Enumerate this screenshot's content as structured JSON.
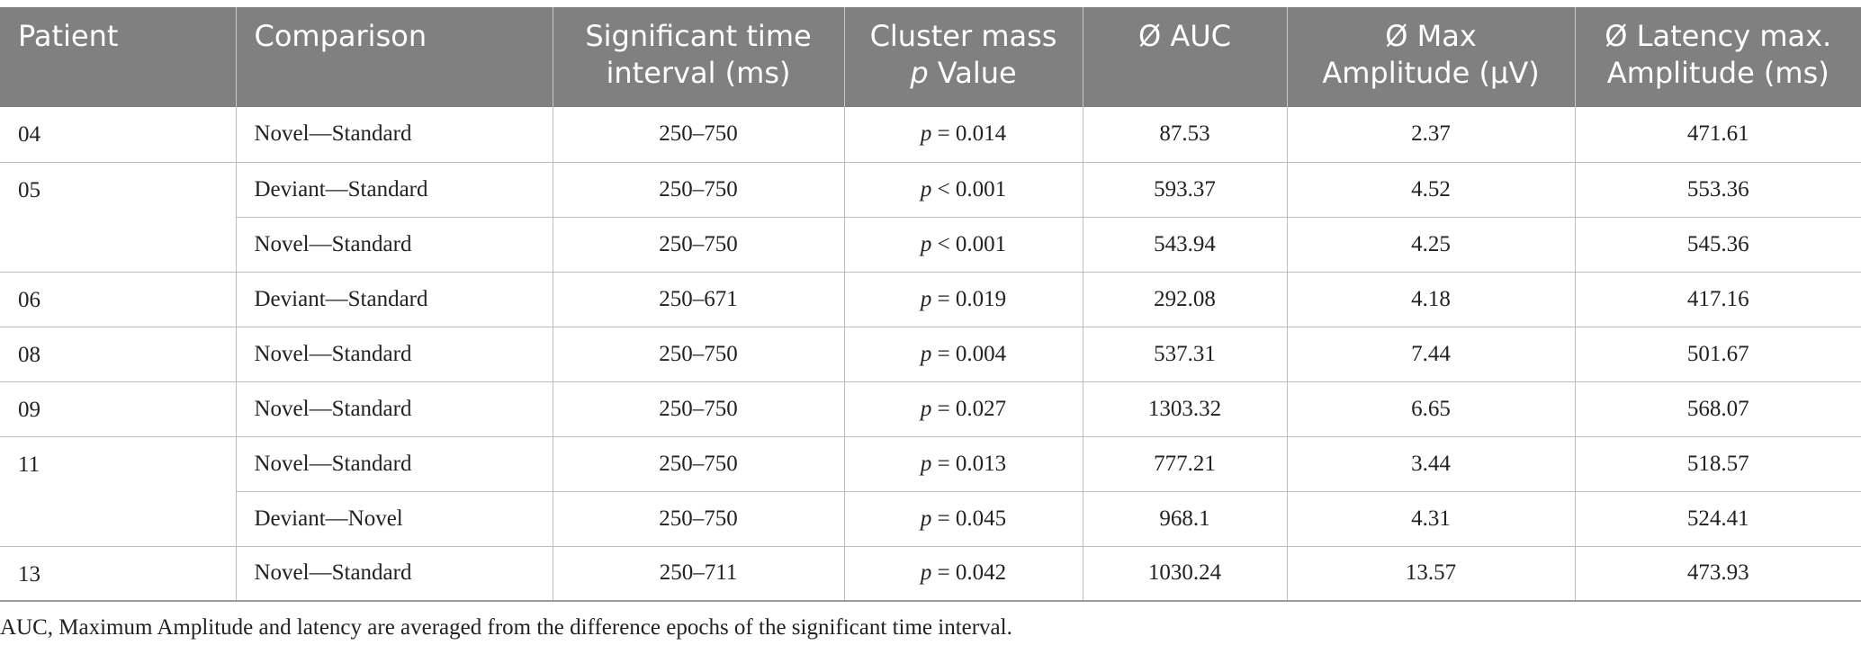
{
  "table": {
    "headers": {
      "patient": "Patient",
      "comparison": "Comparison",
      "interval_line1": "Significant time",
      "interval_line2": "interval (ms)",
      "cluster_line1": "Cluster mass",
      "cluster_p": "p",
      "cluster_value": " Value",
      "auc": "Ø AUC",
      "max_line1": "Ø Max",
      "max_line2": "Amplitude (µV)",
      "latency_line1": "Ø Latency max.",
      "latency_line2": "Amplitude (ms)"
    },
    "rows": [
      {
        "patient": "04",
        "comparison": "Novel—Standard",
        "interval": "250–750",
        "p_label": "p",
        "p_rest": " = 0.014",
        "auc": "87.53",
        "max_amp": "2.37",
        "latency": "471.61"
      },
      {
        "patient": "05",
        "comparison": "Deviant—Standard",
        "interval": "250–750",
        "p_label": "p",
        "p_rest": " < 0.001",
        "auc": "593.37",
        "max_amp": "4.52",
        "latency": "553.36"
      },
      {
        "patient": "",
        "comparison": "Novel—Standard",
        "interval": "250–750",
        "p_label": "p",
        "p_rest": " < 0.001",
        "auc": "543.94",
        "max_amp": "4.25",
        "latency": "545.36"
      },
      {
        "patient": "06",
        "comparison": "Deviant—Standard",
        "interval": "250–671",
        "p_label": "p",
        "p_rest": " = 0.019",
        "auc": "292.08",
        "max_amp": "4.18",
        "latency": "417.16"
      },
      {
        "patient": "08",
        "comparison": "Novel—Standard",
        "interval": "250–750",
        "p_label": "p",
        "p_rest": " = 0.004",
        "auc": "537.31",
        "max_amp": "7.44",
        "latency": "501.67"
      },
      {
        "patient": "09",
        "comparison": "Novel—Standard",
        "interval": "250–750",
        "p_label": "p",
        "p_rest": " = 0.027",
        "auc": "1303.32",
        "max_amp": "6.65",
        "latency": "568.07"
      },
      {
        "patient": "11",
        "comparison": "Novel—Standard",
        "interval": "250–750",
        "p_label": "p",
        "p_rest": " = 0.013",
        "auc": "777.21",
        "max_amp": "3.44",
        "latency": "518.57"
      },
      {
        "patient": "",
        "comparison": "Deviant—Novel",
        "interval": "250–750",
        "p_label": "p",
        "p_rest": " = 0.045",
        "auc": "968.1",
        "max_amp": "4.31",
        "latency": "524.41"
      },
      {
        "patient": "13",
        "comparison": "Novel—Standard",
        "interval": "250–711",
        "p_label": "p",
        "p_rest": " = 0.042",
        "auc": "1030.24",
        "max_amp": "13.57",
        "latency": "473.93"
      }
    ]
  },
  "footnote": "AUC, Maximum Amplitude and latency are averaged from the difference epochs of the significant time interval.",
  "colors": {
    "header_bg": "#808080",
    "header_text": "#ffffff",
    "rule": "#bdbdbd"
  }
}
